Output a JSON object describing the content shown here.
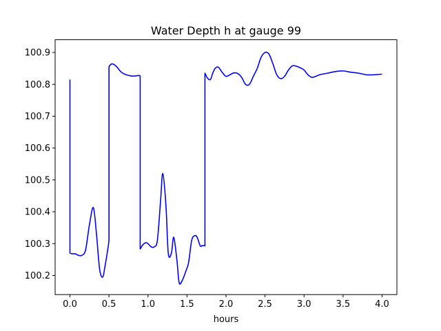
{
  "chart_data": {
    "type": "line",
    "title": "Water Depth h at gauge 99",
    "xlabel": "hours",
    "ylabel": "",
    "xlim": [
      -0.19,
      4.19
    ],
    "ylim": [
      100.14,
      100.94
    ],
    "xticks": [
      {
        "value": 0.0,
        "label": "0.0"
      },
      {
        "value": 0.5,
        "label": "0.5"
      },
      {
        "value": 1.0,
        "label": "1.0"
      },
      {
        "value": 1.5,
        "label": "1.5"
      },
      {
        "value": 2.0,
        "label": "2.0"
      },
      {
        "value": 2.5,
        "label": "2.5"
      },
      {
        "value": 3.0,
        "label": "3.0"
      },
      {
        "value": 3.5,
        "label": "3.5"
      },
      {
        "value": 4.0,
        "label": "4.0"
      }
    ],
    "yticks": [
      {
        "value": 100.2,
        "label": "100.2"
      },
      {
        "value": 100.3,
        "label": "100.3"
      },
      {
        "value": 100.4,
        "label": "100.4"
      },
      {
        "value": 100.5,
        "label": "100.5"
      },
      {
        "value": 100.6,
        "label": "100.6"
      },
      {
        "value": 100.7,
        "label": "100.7"
      },
      {
        "value": 100.8,
        "label": "100.8"
      },
      {
        "value": 100.9,
        "label": "100.9"
      }
    ],
    "grid": false,
    "series": [
      {
        "name": "",
        "color": "#0000ff",
        "x": [
          0.0,
          0.0,
          0.0,
          0.03,
          0.07,
          0.1,
          0.15,
          0.2,
          0.25,
          0.3,
          0.34,
          0.38,
          0.42,
          0.45,
          0.49,
          0.5,
          0.5,
          0.52,
          0.55,
          0.6,
          0.65,
          0.7,
          0.8,
          0.89,
          0.9,
          0.9,
          0.93,
          0.97,
          1.0,
          1.04,
          1.08,
          1.12,
          1.16,
          1.19,
          1.23,
          1.26,
          1.3,
          1.33,
          1.37,
          1.4,
          1.44,
          1.48,
          1.52,
          1.56,
          1.6,
          1.63,
          1.67,
          1.7,
          1.73,
          1.73,
          1.76,
          1.8,
          1.83,
          1.86,
          1.9,
          1.95,
          2.0,
          2.05,
          2.1,
          2.15,
          2.2,
          2.25,
          2.3,
          2.35,
          2.4,
          2.45,
          2.5,
          2.55,
          2.6,
          2.65,
          2.7,
          2.75,
          2.8,
          2.85,
          2.9,
          2.95,
          3.0,
          3.05,
          3.1,
          3.15,
          3.2,
          3.3,
          3.4,
          3.5,
          3.6,
          3.7,
          3.8,
          3.9,
          4.0
        ],
        "y": [
          100.815,
          100.27,
          100.27,
          100.268,
          100.268,
          100.264,
          100.263,
          100.28,
          100.36,
          100.413,
          100.33,
          100.22,
          100.195,
          100.23,
          100.29,
          100.31,
          100.855,
          100.862,
          100.864,
          100.855,
          100.84,
          100.832,
          100.826,
          100.828,
          100.826,
          100.283,
          100.295,
          100.303,
          100.3,
          100.29,
          100.29,
          100.31,
          100.43,
          100.52,
          100.42,
          100.27,
          100.27,
          100.32,
          100.25,
          100.177,
          100.185,
          100.21,
          100.24,
          100.31,
          100.325,
          100.32,
          100.293,
          100.294,
          100.293,
          100.835,
          100.82,
          100.815,
          100.835,
          100.85,
          100.854,
          100.838,
          100.825,
          100.83,
          100.836,
          100.834,
          100.822,
          100.8,
          100.8,
          100.825,
          100.85,
          100.885,
          100.9,
          100.895,
          100.865,
          100.83,
          100.818,
          100.825,
          100.845,
          100.858,
          100.857,
          100.852,
          100.845,
          100.83,
          100.822,
          100.825,
          100.83,
          100.835,
          100.84,
          100.842,
          100.838,
          100.835,
          100.83,
          100.83,
          100.832
        ]
      }
    ]
  }
}
